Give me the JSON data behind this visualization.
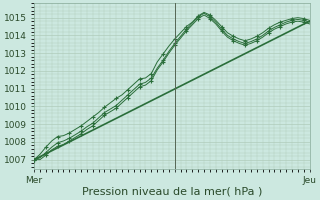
{
  "bg_color": "#cce8e0",
  "grid_color": "#b0ccbb",
  "line_color": "#2a6e3a",
  "marker_color": "#2a6e3a",
  "ylabel_ticks": [
    1007,
    1008,
    1009,
    1010,
    1011,
    1012,
    1013,
    1014,
    1015
  ],
  "ylim": [
    1006.5,
    1015.8
  ],
  "xlim": [
    0,
    47
  ],
  "xlabel": "Pression niveau de la mer( hPa )",
  "xlabel_fontsize": 8,
  "tick_fontsize": 6.5,
  "x_ticks": [
    0,
    24,
    47
  ],
  "x_tick_labels": [
    "Mer",
    "",
    "Jeu"
  ],
  "vline_x": 24,
  "straight_line": [
    1007.0,
    1014.8
  ],
  "wavy1": [
    1007.0,
    1007.1,
    1007.4,
    1007.7,
    1007.95,
    1008.05,
    1008.2,
    1008.4,
    1008.6,
    1008.85,
    1009.05,
    1009.35,
    1009.65,
    1009.85,
    1010.05,
    1010.35,
    1010.65,
    1010.95,
    1011.25,
    1011.35,
    1011.6,
    1012.15,
    1012.6,
    1013.1,
    1013.55,
    1013.95,
    1014.35,
    1014.7,
    1015.05,
    1015.25,
    1015.05,
    1014.75,
    1014.35,
    1014.0,
    1013.8,
    1013.65,
    1013.55,
    1013.65,
    1013.8,
    1014.0,
    1014.25,
    1014.45,
    1014.6,
    1014.75,
    1014.85,
    1014.9,
    1014.85,
    1014.75
  ],
  "wavy2": [
    1007.0,
    1007.3,
    1007.7,
    1008.05,
    1008.3,
    1008.35,
    1008.5,
    1008.7,
    1008.9,
    1009.15,
    1009.4,
    1009.65,
    1009.95,
    1010.2,
    1010.45,
    1010.65,
    1010.95,
    1011.25,
    1011.55,
    1011.6,
    1011.85,
    1012.5,
    1012.95,
    1013.4,
    1013.8,
    1014.15,
    1014.5,
    1014.75,
    1015.1,
    1015.3,
    1015.15,
    1014.85,
    1014.5,
    1014.15,
    1013.95,
    1013.8,
    1013.7,
    1013.8,
    1013.95,
    1014.15,
    1014.4,
    1014.6,
    1014.75,
    1014.85,
    1014.95,
    1015.0,
    1014.95,
    1014.85
  ],
  "wavy3": [
    1007.0,
    1007.0,
    1007.25,
    1007.55,
    1007.75,
    1007.85,
    1008.05,
    1008.25,
    1008.45,
    1008.7,
    1008.9,
    1009.2,
    1009.5,
    1009.7,
    1009.9,
    1010.2,
    1010.5,
    1010.8,
    1011.1,
    1011.2,
    1011.45,
    1012.05,
    1012.5,
    1013.0,
    1013.45,
    1013.85,
    1014.25,
    1014.6,
    1014.95,
    1015.15,
    1014.95,
    1014.65,
    1014.25,
    1013.9,
    1013.7,
    1013.55,
    1013.45,
    1013.55,
    1013.7,
    1013.9,
    1014.15,
    1014.35,
    1014.5,
    1014.65,
    1014.75,
    1014.8,
    1014.75,
    1014.65
  ]
}
